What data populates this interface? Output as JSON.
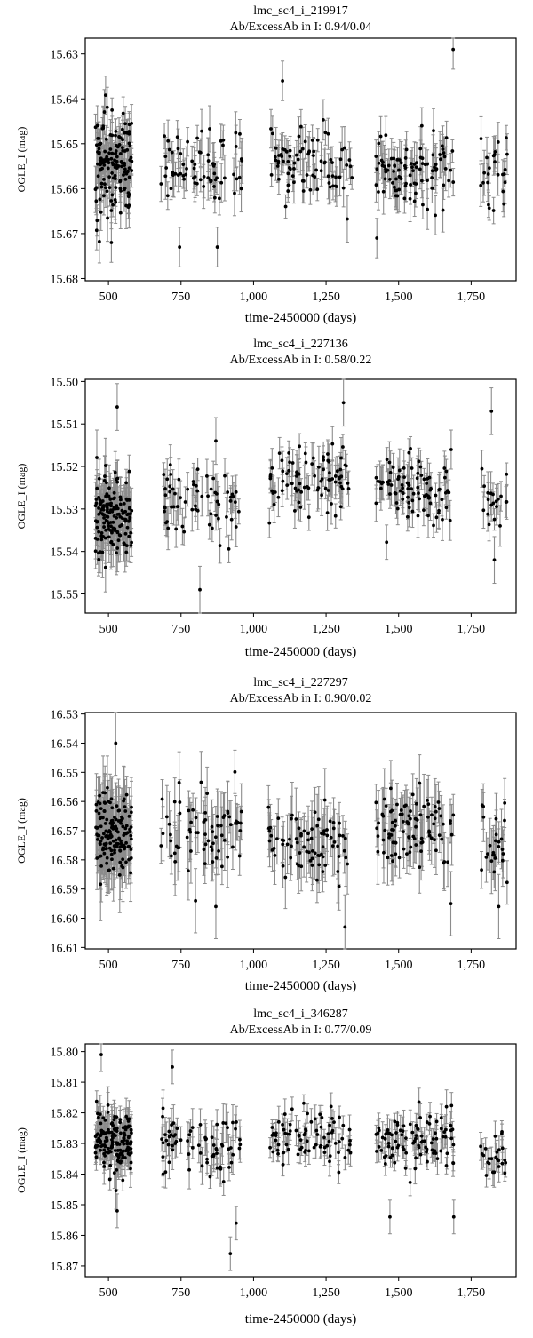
{
  "figure": {
    "x_ticks": [
      500,
      750,
      1000,
      1250,
      1500,
      1750
    ],
    "x_tick_labels": [
      "500",
      "750",
      "1,000",
      "1,250",
      "1,500",
      "1,750"
    ],
    "xlim": [
      420,
      1905
    ]
  },
  "chart_data": [
    {
      "type": "scatter",
      "title": "lmc_sc4_i_219917",
      "subtitle": "Ab/ExcessAb in I: 0.94/0.04",
      "xlabel": "time-2450000 (days)",
      "ylabel": "OGLE_I (mag)",
      "y_inverted": true,
      "ylim": [
        15.6265,
        15.6805
      ],
      "y_ticks": [
        15.63,
        15.64,
        15.65,
        15.66,
        15.67,
        15.68
      ],
      "y_tick_labels": [
        "15.63",
        "15.64",
        "15.65",
        "15.66",
        "15.67",
        "15.68"
      ],
      "error_bars": true,
      "clusters": [
        {
          "x_range": [
            455,
            580
          ],
          "count": 150,
          "y_center": 15.654,
          "y_spread": 0.009,
          "err": 0.004
        },
        {
          "x_range": [
            680,
            960
          ],
          "count": 70,
          "y_center": 15.655,
          "y_spread": 0.007,
          "err": 0.004
        },
        {
          "x_range": [
            1050,
            1340
          ],
          "count": 80,
          "y_center": 15.654,
          "y_spread": 0.007,
          "err": 0.004
        },
        {
          "x_range": [
            1420,
            1690
          ],
          "count": 95,
          "y_center": 15.656,
          "y_spread": 0.006,
          "err": 0.004
        },
        {
          "x_range": [
            1780,
            1875
          ],
          "count": 25,
          "y_center": 15.656,
          "y_spread": 0.007,
          "err": 0.004
        }
      ],
      "highlights": [
        {
          "x": 1688,
          "y": 15.629
        },
        {
          "x": 1100,
          "y": 15.636
        },
        {
          "x": 510,
          "y": 15.672
        },
        {
          "x": 875,
          "y": 15.673
        },
        {
          "x": 745,
          "y": 15.673
        },
        {
          "x": 1425,
          "y": 15.671
        }
      ]
    },
    {
      "type": "scatter",
      "title": "lmc_sc4_i_227136",
      "subtitle": "Ab/ExcessAb in I: 0.58/0.22",
      "xlabel": "time-2450000 (days)",
      "ylabel": "OGLE_I (mag)",
      "y_inverted": true,
      "ylim": [
        15.4995,
        15.5545
      ],
      "y_ticks": [
        15.5,
        15.51,
        15.52,
        15.53,
        15.54,
        15.55
      ],
      "y_tick_labels": [
        "15.50",
        "15.51",
        "15.52",
        "15.53",
        "15.54",
        "15.55"
      ],
      "error_bars": true,
      "clusters": [
        {
          "x_range": [
            455,
            580
          ],
          "count": 150,
          "y_center": 15.532,
          "y_spread": 0.008,
          "err": 0.005
        },
        {
          "x_range": [
            680,
            950
          ],
          "count": 65,
          "y_center": 15.528,
          "y_spread": 0.008,
          "err": 0.004
        },
        {
          "x_range": [
            1050,
            1330
          ],
          "count": 85,
          "y_center": 15.524,
          "y_spread": 0.007,
          "err": 0.004
        },
        {
          "x_range": [
            1420,
            1690
          ],
          "count": 90,
          "y_center": 15.526,
          "y_spread": 0.007,
          "err": 0.004
        },
        {
          "x_range": [
            1780,
            1875
          ],
          "count": 20,
          "y_center": 15.527,
          "y_spread": 0.006,
          "err": 0.004
        }
      ],
      "highlights": [
        {
          "x": 530,
          "y": 15.506
        },
        {
          "x": 815,
          "y": 15.549
        },
        {
          "x": 1310,
          "y": 15.505
        },
        {
          "x": 1820,
          "y": 15.507
        },
        {
          "x": 1830,
          "y": 15.542
        },
        {
          "x": 870,
          "y": 15.514
        }
      ]
    },
    {
      "type": "scatter",
      "title": "lmc_sc4_i_227297",
      "subtitle": "Ab/ExcessAb in I: 0.90/0.02",
      "xlabel": "time-2450000 (days)",
      "ylabel": "OGLE_I (mag)",
      "y_inverted": true,
      "ylim": [
        16.5295,
        16.6105
      ],
      "y_ticks": [
        16.53,
        16.54,
        16.55,
        16.56,
        16.57,
        16.58,
        16.59,
        16.6,
        16.61
      ],
      "y_tick_labels": [
        "16.53",
        "16.54",
        "16.55",
        "16.56",
        "16.57",
        "16.58",
        "16.59",
        "16.60",
        "16.61"
      ],
      "error_bars": true,
      "clusters": [
        {
          "x_range": [
            455,
            580
          ],
          "count": 150,
          "y_center": 16.571,
          "y_spread": 0.012,
          "err": 0.01
        },
        {
          "x_range": [
            680,
            960
          ],
          "count": 70,
          "y_center": 16.57,
          "y_spread": 0.011,
          "err": 0.009
        },
        {
          "x_range": [
            1050,
            1330
          ],
          "count": 80,
          "y_center": 16.574,
          "y_spread": 0.01,
          "err": 0.009
        },
        {
          "x_range": [
            1420,
            1690
          ],
          "count": 95,
          "y_center": 16.569,
          "y_spread": 0.011,
          "err": 0.009
        },
        {
          "x_range": [
            1780,
            1875
          ],
          "count": 25,
          "y_center": 16.574,
          "y_spread": 0.011,
          "err": 0.009
        }
      ],
      "highlights": [
        {
          "x": 1315,
          "y": 16.603
        },
        {
          "x": 525,
          "y": 16.54
        },
        {
          "x": 870,
          "y": 16.596
        },
        {
          "x": 800,
          "y": 16.594
        },
        {
          "x": 1845,
          "y": 16.596
        },
        {
          "x": 1680,
          "y": 16.595
        }
      ]
    },
    {
      "type": "scatter",
      "title": "lmc_sc4_i_346287",
      "subtitle": "Ab/ExcessAb in I: 0.77/0.09",
      "xlabel": "time-2450000 (days)",
      "ylabel": "OGLE_I (mag)",
      "y_inverted": true,
      "ylim": [
        15.7975,
        15.8735
      ],
      "y_ticks": [
        15.8,
        15.81,
        15.82,
        15.83,
        15.84,
        15.85,
        15.86,
        15.87
      ],
      "y_tick_labels": [
        "15.80",
        "15.81",
        "15.82",
        "15.83",
        "15.84",
        "15.85",
        "15.86",
        "15.87"
      ],
      "error_bars": true,
      "clusters": [
        {
          "x_range": [
            455,
            580
          ],
          "count": 150,
          "y_center": 15.829,
          "y_spread": 0.008,
          "err": 0.005
        },
        {
          "x_range": [
            680,
            960
          ],
          "count": 70,
          "y_center": 15.83,
          "y_spread": 0.008,
          "err": 0.005
        },
        {
          "x_range": [
            1050,
            1340
          ],
          "count": 80,
          "y_center": 15.828,
          "y_spread": 0.007,
          "err": 0.004
        },
        {
          "x_range": [
            1420,
            1690
          ],
          "count": 95,
          "y_center": 15.829,
          "y_spread": 0.007,
          "err": 0.004
        },
        {
          "x_range": [
            1780,
            1875
          ],
          "count": 25,
          "y_center": 15.834,
          "y_spread": 0.005,
          "err": 0.004
        }
      ],
      "highlights": [
        {
          "x": 475,
          "y": 15.801
        },
        {
          "x": 920,
          "y": 15.866
        },
        {
          "x": 940,
          "y": 15.856
        },
        {
          "x": 720,
          "y": 15.805
        },
        {
          "x": 1665,
          "y": 15.818
        },
        {
          "x": 1690,
          "y": 15.854
        },
        {
          "x": 1470,
          "y": 15.854
        },
        {
          "x": 530,
          "y": 15.852
        }
      ]
    }
  ]
}
